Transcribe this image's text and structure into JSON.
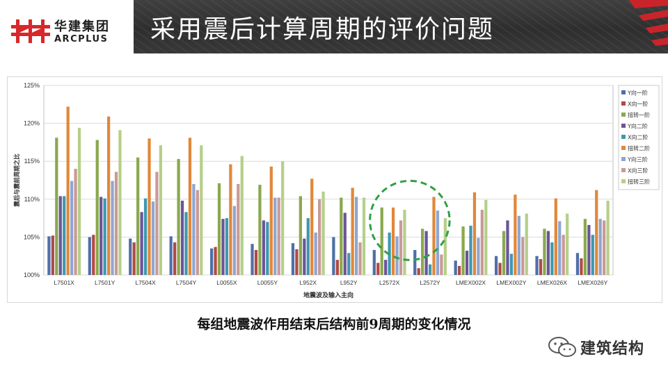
{
  "header": {
    "logo_cn": "华建集团",
    "logo_en": "ARCPLUS",
    "title": "采用震后计算周期的评价问题"
  },
  "caption": "每组地震波作用结束后结构前9周期的变化情况",
  "watermark": {
    "text": "建筑结构",
    "icon": "wechat-icon"
  },
  "highlight": {
    "shape": "dashed-circle",
    "color": "#2ea043",
    "around_categories": [
      "L2572X",
      "L2572Y"
    ]
  },
  "chart_data": {
    "type": "bar",
    "title": "",
    "xlabel": "地震波及输入主向",
    "ylabel": "震后与震前周期之比",
    "ylim": [
      100,
      125
    ],
    "yticks": [
      "100%",
      "105%",
      "110%",
      "115%",
      "120%",
      "125%"
    ],
    "ytick_values": [
      100,
      105,
      110,
      115,
      120,
      125
    ],
    "grid": true,
    "legend_position": "right",
    "categories": [
      "L7501X",
      "L7501Y",
      "L7504X",
      "L7504Y",
      "L0055X",
      "L0055Y",
      "L952X",
      "L952Y",
      "L2572X",
      "L2572Y",
      "LMEX002X",
      "LMEX002Y",
      "LMEX026X",
      "LMEX026Y"
    ],
    "series": [
      {
        "name": "Y向一阶",
        "color": "#4f6fa8",
        "values": [
          105.1,
          105.0,
          104.8,
          105.1,
          103.5,
          104.1,
          104.2,
          105.0,
          103.3,
          103.3,
          101.9,
          102.5,
          102.5,
          102.9
        ]
      },
      {
        "name": "X向一阶",
        "color": "#b04a46",
        "values": [
          105.2,
          105.3,
          104.3,
          104.3,
          103.7,
          103.3,
          103.4,
          102.0,
          101.6,
          100.9,
          101.2,
          101.6,
          102.1,
          102.2
        ]
      },
      {
        "name": "扭转一阶",
        "color": "#8aa84e",
        "values": [
          118.1,
          117.8,
          115.5,
          115.3,
          112.1,
          111.9,
          110.4,
          110.2,
          108.9,
          106.1,
          106.4,
          105.8,
          106.1,
          107.4
        ]
      },
      {
        "name": "Y向二阶",
        "color": "#6b5597",
        "values": [
          110.4,
          110.3,
          108.3,
          109.8,
          107.4,
          107.2,
          104.8,
          108.2,
          102.0,
          105.8,
          103.2,
          107.2,
          105.8,
          106.6
        ]
      },
      {
        "name": "X向二阶",
        "color": "#3e98b0",
        "values": [
          110.4,
          110.1,
          110.1,
          108.3,
          107.5,
          107.0,
          107.5,
          102.9,
          105.6,
          101.4,
          106.5,
          102.8,
          104.3,
          105.3
        ]
      },
      {
        "name": "扭转二阶",
        "color": "#e0883a",
        "values": [
          122.2,
          120.9,
          118.0,
          118.1,
          114.6,
          114.3,
          112.7,
          111.5,
          108.9,
          110.3,
          110.9,
          110.6,
          110.1,
          111.2
        ]
      },
      {
        "name": "Y向三阶",
        "color": "#8fa6cf",
        "values": [
          112.4,
          112.4,
          109.7,
          112.0,
          109.1,
          110.2,
          105.6,
          110.3,
          105.1,
          108.5,
          104.9,
          107.8,
          107.1,
          107.4
        ]
      },
      {
        "name": "X向三阶",
        "color": "#c99a98",
        "values": [
          114.0,
          113.6,
          113.6,
          111.2,
          112.0,
          110.2,
          110.0,
          104.3,
          107.2,
          102.7,
          108.6,
          105.0,
          105.3,
          107.2
        ]
      },
      {
        "name": "扭转三阶",
        "color": "#b5cf8a",
        "values": [
          119.4,
          119.1,
          117.1,
          117.1,
          115.7,
          115.0,
          111.0,
          110.2,
          108.6,
          107.5,
          109.9,
          108.1,
          108.1,
          109.8
        ]
      }
    ]
  }
}
